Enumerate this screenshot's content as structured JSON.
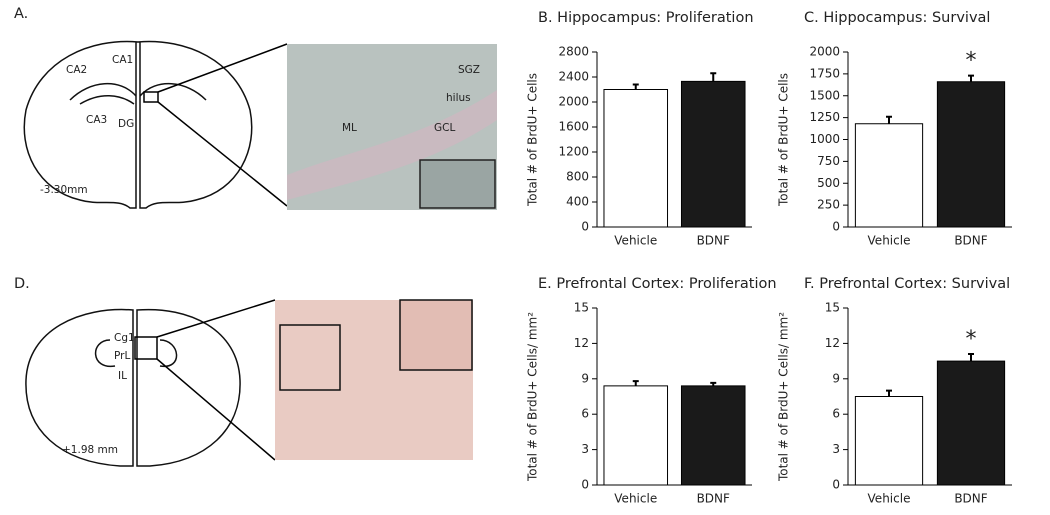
{
  "chart_data": [
    {
      "type": "bar",
      "title": "B. Hippocampus: Proliferation",
      "y_label": "Total # of BrdU+ Cells",
      "categories": [
        "Vehicle",
        "BDNF"
      ],
      "values": [
        2200,
        2330
      ],
      "errors": [
        80,
        130
      ],
      "colors": [
        "#ffffff",
        "#1a1a1a"
      ],
      "ylim": [
        0,
        2800
      ],
      "yticks": [
        0,
        400,
        800,
        1200,
        1600,
        2000,
        2400,
        2800
      ]
    },
    {
      "type": "bar",
      "title": "C. Hippocampus: Survival",
      "y_label": "Total # of BrdU+ Cells",
      "categories": [
        "Vehicle",
        "BDNF"
      ],
      "values": [
        1180,
        1660
      ],
      "errors": [
        80,
        70
      ],
      "colors": [
        "#ffffff",
        "#1a1a1a"
      ],
      "ylim": [
        0,
        2000
      ],
      "yticks": [
        0,
        250,
        500,
        750,
        1000,
        1250,
        1500,
        1750,
        2000
      ],
      "annotation": {
        "text": "*",
        "category": "BDNF"
      }
    },
    {
      "type": "bar",
      "title": "E. Prefrontal Cortex: Proliferation",
      "y_label": "Total # of BrdU+ Cells/ mm²",
      "categories": [
        "Vehicle",
        "BDNF"
      ],
      "values": [
        8.4,
        8.4
      ],
      "errors": [
        0.4,
        0.25
      ],
      "colors": [
        "#ffffff",
        "#1a1a1a"
      ],
      "ylim": [
        0,
        15
      ],
      "yticks": [
        0,
        3,
        6,
        9,
        12,
        15
      ]
    },
    {
      "type": "bar",
      "title": "F. Prefrontal Cortex: Survival",
      "y_label": "Total # of BrdU+ Cells/ mm²",
      "categories": [
        "Vehicle",
        "BDNF"
      ],
      "values": [
        7.5,
        10.5
      ],
      "errors": [
        0.5,
        0.6
      ],
      "colors": [
        "#ffffff",
        "#1a1a1a"
      ],
      "ylim": [
        0,
        15
      ],
      "yticks": [
        0,
        3,
        6,
        9,
        12,
        15
      ],
      "annotation": {
        "text": "*",
        "category": "BDNF"
      }
    }
  ],
  "diagrams": {
    "A": {
      "label": "A.",
      "regions": [
        "CA1",
        "CA2",
        "CA3",
        "DG"
      ],
      "coordinate": "-3.30mm",
      "micrograph": [
        "SGZ",
        "hilus",
        "ML",
        "GCL"
      ]
    },
    "D": {
      "label": "D.",
      "regions": [
        "Cg1",
        "PrL",
        "IL"
      ],
      "coordinate": "+1.98 mm"
    }
  }
}
